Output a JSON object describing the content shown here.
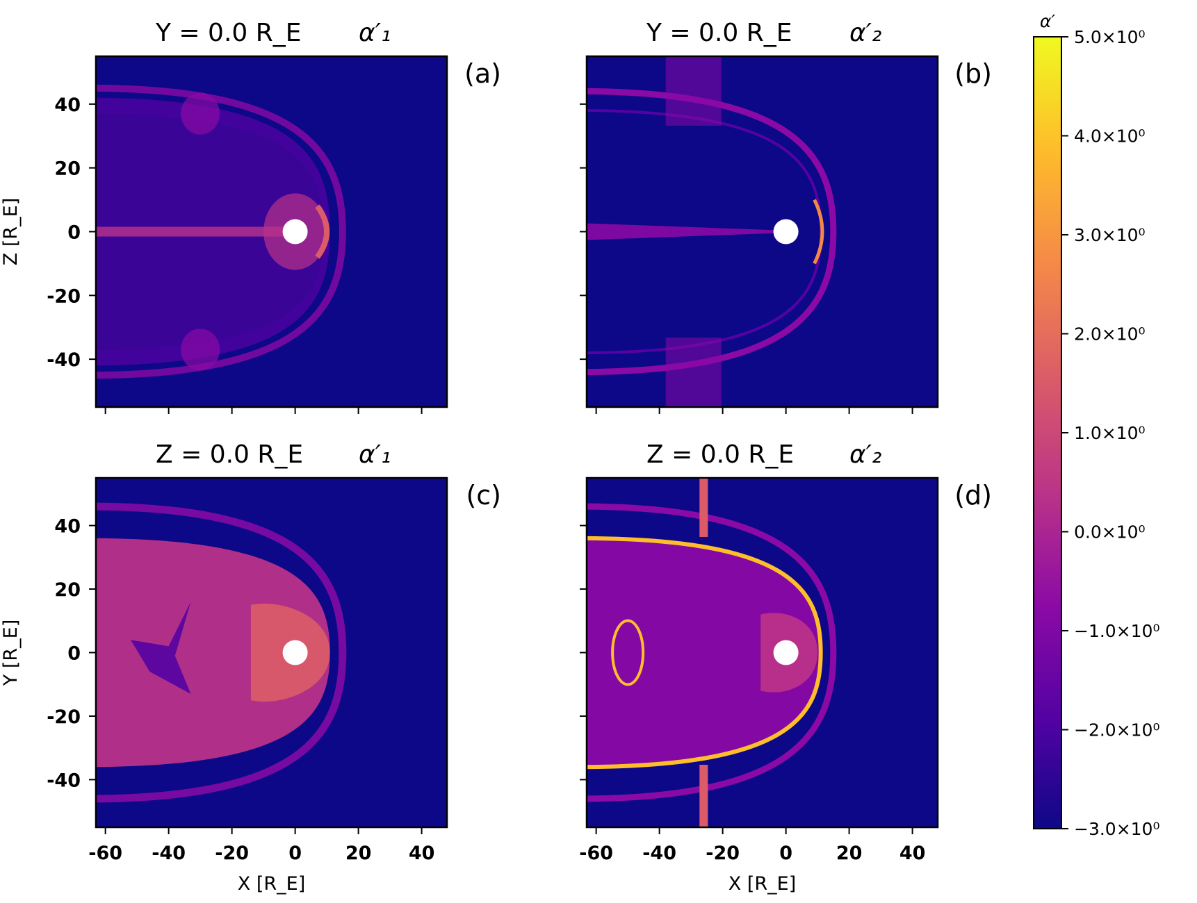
{
  "chart_data": {
    "type": "heatmap",
    "colormap": "plasma",
    "colorbar": {
      "label": "α′",
      "range": [
        -3.0,
        5.0
      ],
      "ticks": [
        5.0,
        4.0,
        3.0,
        2.0,
        1.0,
        0.0,
        -1.0,
        -2.0,
        -3.0
      ],
      "tick_labels": [
        "5.0×10⁰",
        "4.0×10⁰",
        "3.0×10⁰",
        "2.0×10⁰",
        "1.0×10⁰",
        "0.0×10⁰",
        "−1.0×10⁰",
        "−2.0×10⁰",
        "−3.0×10⁰"
      ],
      "colors": [
        "#0d0887",
        "#5402a3",
        "#8b0aa5",
        "#b93289",
        "#db5c68",
        "#f48849",
        "#febd2a",
        "#f0f921"
      ]
    },
    "x_axis": {
      "label": "X [R_E]",
      "range": [
        -63,
        48
      ],
      "ticks": [
        -60,
        -40,
        -20,
        0,
        20,
        40
      ]
    },
    "panels": [
      {
        "tag": "(a)",
        "title_left": "Y = 0.0 R_E",
        "title_right": "α′₁",
        "ylabel": "Z [R_E]",
        "yrange": [
          -55,
          55
        ],
        "yticks": [
          40,
          20,
          0,
          -20,
          -40
        ],
        "variant": "a1_meridional"
      },
      {
        "tag": "(b)",
        "title_left": "Y = 0.0 R_E",
        "title_right": "α′₂",
        "ylabel": "",
        "yrange": [
          -55,
          55
        ],
        "yticks": [
          40,
          20,
          0,
          -20,
          -40
        ],
        "variant": "a2_meridional"
      },
      {
        "tag": "(c)",
        "title_left": "Z = 0.0 R_E",
        "title_right": "α′₁",
        "ylabel": "Y [R_E]",
        "yrange": [
          -55,
          55
        ],
        "yticks": [
          40,
          20,
          0,
          -20,
          -40
        ],
        "variant": "a1_equatorial"
      },
      {
        "tag": "(d)",
        "title_left": "Z = 0.0 R_E",
        "title_right": "α′₂",
        "ylabel": "",
        "yrange": [
          -55,
          55
        ],
        "yticks": [
          40,
          20,
          0,
          -20,
          -40
        ],
        "variant": "a2_equatorial"
      }
    ]
  }
}
